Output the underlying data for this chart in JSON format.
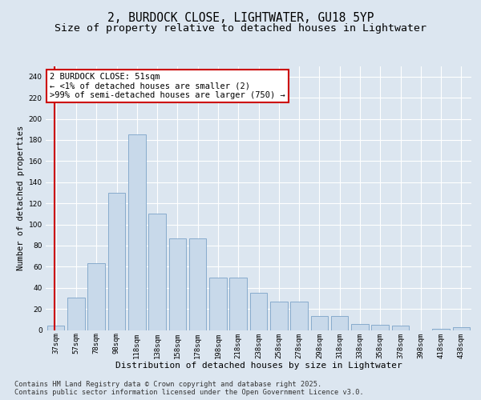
{
  "title1": "2, BURDOCK CLOSE, LIGHTWATER, GU18 5YP",
  "title2": "Size of property relative to detached houses in Lightwater",
  "xlabel": "Distribution of detached houses by size in Lightwater",
  "ylabel": "Number of detached properties",
  "categories": [
    "37sqm",
    "57sqm",
    "78sqm",
    "98sqm",
    "118sqm",
    "138sqm",
    "158sqm",
    "178sqm",
    "198sqm",
    "218sqm",
    "238sqm",
    "258sqm",
    "278sqm",
    "298sqm",
    "318sqm",
    "338sqm",
    "358sqm",
    "378sqm",
    "398sqm",
    "418sqm",
    "438sqm"
  ],
  "values": [
    4,
    31,
    63,
    130,
    185,
    110,
    87,
    87,
    50,
    50,
    35,
    27,
    27,
    13,
    13,
    6,
    5,
    4,
    0,
    1,
    3
  ],
  "bar_color": "#c8d9ea",
  "bar_edge_color": "#7ba3c8",
  "annotation_text": "2 BURDOCK CLOSE: 51sqm\n← <1% of detached houses are smaller (2)\n>99% of semi-detached houses are larger (750) →",
  "annotation_box_facecolor": "#ffffff",
  "annotation_box_edgecolor": "#cc0000",
  "marker_line_color": "#cc0000",
  "background_color": "#dce6f0",
  "grid_color": "#ffffff",
  "ylim": [
    0,
    250
  ],
  "yticks": [
    0,
    20,
    40,
    60,
    80,
    100,
    120,
    140,
    160,
    180,
    200,
    220,
    240
  ],
  "footer": "Contains HM Land Registry data © Crown copyright and database right 2025.\nContains public sector information licensed under the Open Government Licence v3.0.",
  "title1_fontsize": 10.5,
  "title2_fontsize": 9.5,
  "xlabel_fontsize": 8,
  "ylabel_fontsize": 7.5,
  "tick_fontsize": 6.5,
  "annot_fontsize": 7.5,
  "footer_fontsize": 6.2
}
